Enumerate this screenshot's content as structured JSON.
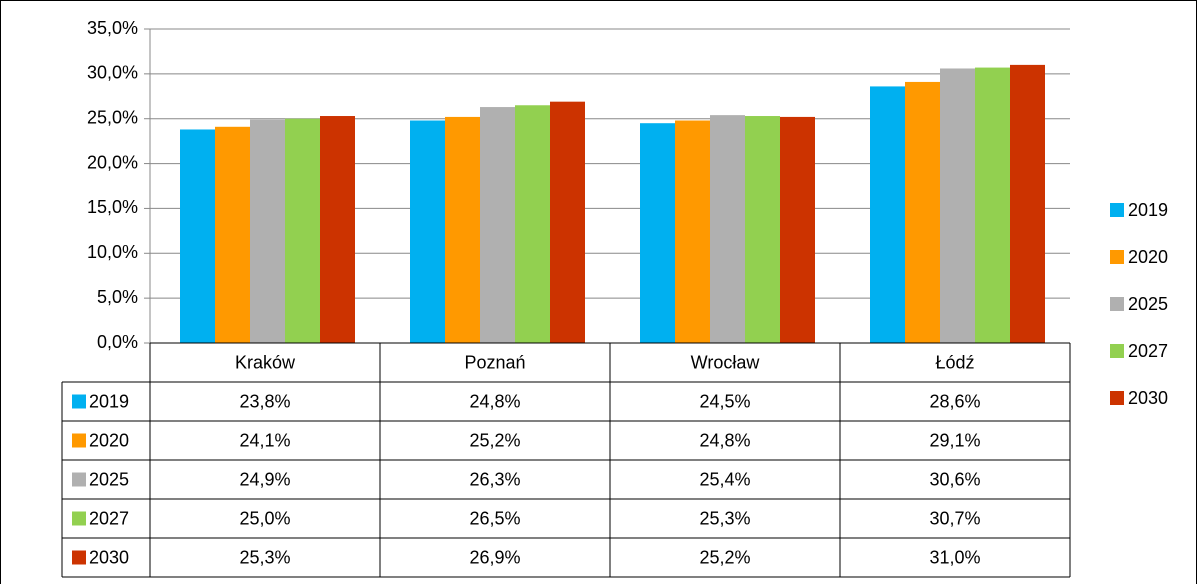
{
  "chart_data": {
    "type": "bar",
    "categories": [
      "Kraków",
      "Poznań",
      "Wrocław",
      "Łódź"
    ],
    "series": [
      {
        "name": "2019",
        "color": "#00b0f0",
        "values": [
          23.8,
          24.8,
          24.5,
          28.6
        ],
        "value_labels": [
          "23,8%",
          "24,8%",
          "24,5%",
          "28,6%"
        ]
      },
      {
        "name": "2020",
        "color": "#ff9900",
        "values": [
          24.1,
          25.2,
          24.8,
          29.1
        ],
        "value_labels": [
          "24,1%",
          "25,2%",
          "24,8%",
          "29,1%"
        ]
      },
      {
        "name": "2025",
        "color": "#b0b0b0",
        "values": [
          24.9,
          26.3,
          25.4,
          30.6
        ],
        "value_labels": [
          "24,9%",
          "26,3%",
          "25,4%",
          "30,6%"
        ]
      },
      {
        "name": "2027",
        "color": "#92d050",
        "values": [
          25.0,
          26.5,
          25.3,
          30.7
        ],
        "value_labels": [
          "25,0%",
          "26,5%",
          "25,3%",
          "30,7%"
        ]
      },
      {
        "name": "2030",
        "color": "#cc3300",
        "values": [
          25.3,
          26.9,
          25.2,
          31.0
        ],
        "value_labels": [
          "25,3%",
          "26,9%",
          "25,2%",
          "31,0%"
        ]
      }
    ],
    "ylim": [
      0,
      35
    ],
    "yticks": [
      {
        "value": 0,
        "label": "0,0%"
      },
      {
        "value": 5,
        "label": "5,0%"
      },
      {
        "value": 10,
        "label": "10,0%"
      },
      {
        "value": 15,
        "label": "15,0%"
      },
      {
        "value": 20,
        "label": "20,0%"
      },
      {
        "value": 25,
        "label": "25,0%"
      },
      {
        "value": 30,
        "label": "30,0%"
      },
      {
        "value": 35,
        "label": "35,0%"
      }
    ],
    "grid": true,
    "legend": "right"
  }
}
